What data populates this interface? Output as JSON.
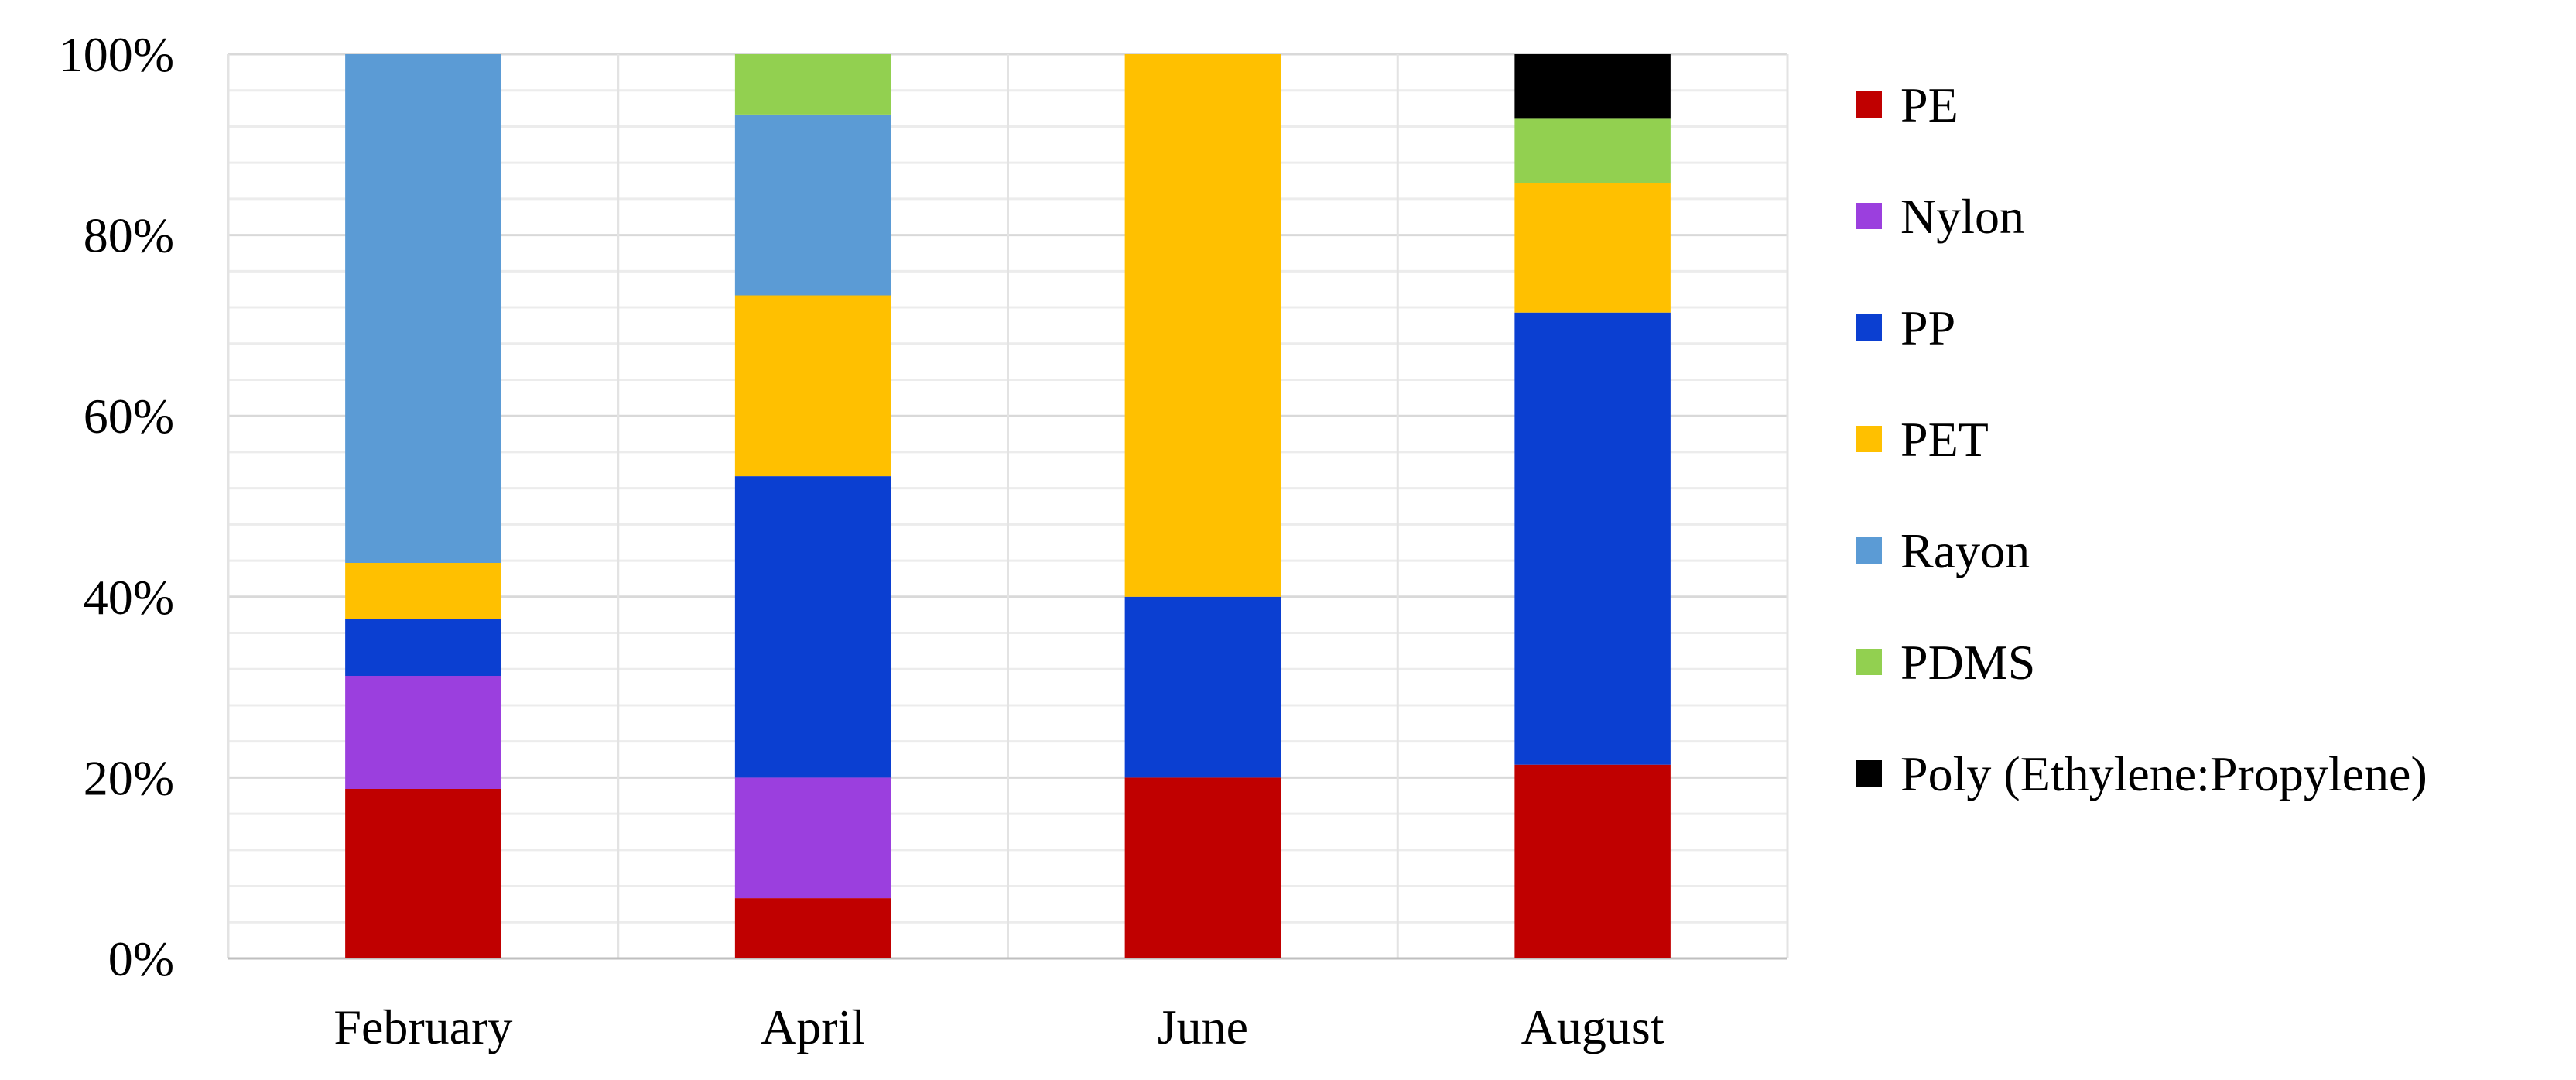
{
  "chart_data": {
    "type": "bar",
    "stacked": true,
    "percent": true,
    "categories": [
      "February",
      "April",
      "June",
      "August"
    ],
    "series": [
      {
        "name": "PE",
        "color": "#C00000",
        "values": [
          18.75,
          6.67,
          20,
          21.43
        ]
      },
      {
        "name": "Nylon",
        "color": "#9B3FDE",
        "values": [
          12.5,
          13.33,
          0,
          0
        ]
      },
      {
        "name": "PP",
        "color": "#0B3FD1",
        "values": [
          6.25,
          33.33,
          20,
          50
        ]
      },
      {
        "name": "PET",
        "color": "#FFC000",
        "values": [
          6.25,
          20,
          60,
          14.29
        ]
      },
      {
        "name": "Rayon",
        "color": "#5B9BD5",
        "values": [
          56.25,
          20,
          0,
          0
        ]
      },
      {
        "name": "PDMS",
        "color": "#92D050",
        "values": [
          0,
          6.67,
          0,
          7.14
        ]
      },
      {
        "name": "Poly (Ethylene:Propylene)",
        "color": "#000000",
        "values": [
          0,
          0,
          0,
          7.14
        ]
      }
    ],
    "y_ticks": [
      "0%",
      "20%",
      "40%",
      "60%",
      "80%",
      "100%"
    ],
    "ylim": [
      0,
      100
    ],
    "grid": true,
    "legend": "right"
  }
}
